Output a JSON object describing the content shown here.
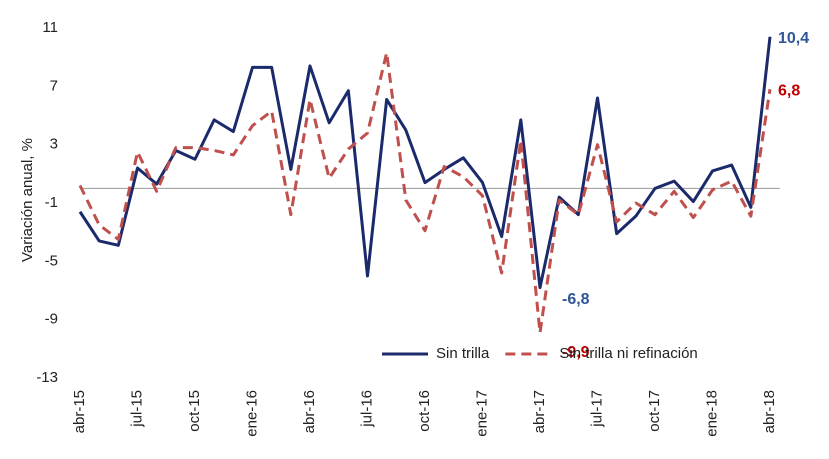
{
  "chart_data": {
    "type": "line",
    "y_label": "Variación anual, %",
    "categories": [
      "abr-15",
      null,
      null,
      "jul-15",
      null,
      null,
      "oct-15",
      null,
      null,
      "ene-16",
      null,
      null,
      "abr-16",
      null,
      null,
      "jul-16",
      null,
      null,
      "oct-16",
      null,
      null,
      "ene-17",
      null,
      null,
      "abr-17",
      null,
      null,
      "jul-17",
      null,
      null,
      "oct-17",
      null,
      null,
      "ene-18",
      null,
      null,
      "abr-18"
    ],
    "series": [
      {
        "name": "Sin trilla",
        "color": "#1b2a6b",
        "dash": false,
        "values": [
          -1.6,
          -3.6,
          -3.9,
          1.4,
          0.3,
          2.6,
          2.0,
          4.7,
          3.9,
          8.3,
          8.3,
          1.3,
          8.4,
          4.5,
          6.7,
          -6.0,
          6.1,
          4.0,
          0.4,
          1.3,
          2.1,
          0.4,
          -3.3,
          4.7,
          -6.8,
          -0.6,
          -1.8,
          6.2,
          -3.1,
          -1.9,
          0,
          0.5,
          -0.9,
          1.2,
          1.6,
          -1.3,
          10.4
        ],
        "value_labels": [
          null,
          null,
          null,
          null,
          null,
          null,
          null,
          null,
          null,
          null,
          null,
          null,
          null,
          null,
          null,
          null,
          null,
          null,
          null,
          null,
          null,
          null,
          null,
          null,
          "-6,8",
          null,
          null,
          null,
          null,
          null,
          null,
          null,
          null,
          null,
          null,
          null,
          "10,4"
        ],
        "label_color": "#2f5597"
      },
      {
        "name": "Sin trilla ni refinación",
        "color": "#c0504d",
        "dash": true,
        "values": [
          0.2,
          -2.5,
          -3.5,
          2.5,
          -0.2,
          2.8,
          2.8,
          2.6,
          2.3,
          4.3,
          5.3,
          -1.8,
          6.1,
          0.7,
          2.7,
          3.8,
          9.3,
          -0.8,
          -2.9,
          1.5,
          0.8,
          -0.5,
          -5.8,
          3.3,
          -9.9,
          -0.8,
          -1.8,
          3.0,
          -2.3,
          -1.0,
          -1.8,
          -0.2,
          -2.0,
          -0.1,
          0.5,
          -1.9,
          6.8
        ],
        "value_labels": [
          null,
          null,
          null,
          null,
          null,
          null,
          null,
          null,
          null,
          null,
          null,
          null,
          null,
          null,
          null,
          null,
          null,
          null,
          null,
          null,
          null,
          null,
          null,
          null,
          "-9,9",
          null,
          null,
          null,
          null,
          null,
          null,
          null,
          null,
          null,
          null,
          null,
          "6,8"
        ],
        "label_color": "#c00000"
      }
    ],
    "ylim": [
      -13,
      11
    ],
    "yticks": [
      -13,
      -9,
      -5,
      -1,
      3,
      7,
      11
    ],
    "legend": "lower right"
  }
}
